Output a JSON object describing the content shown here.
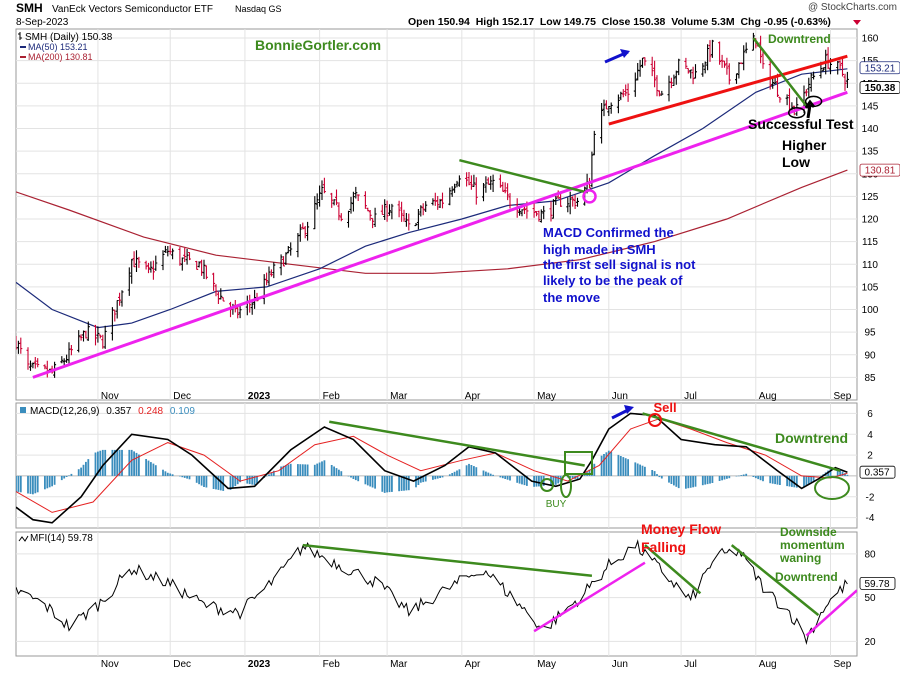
{
  "header": {
    "symbol": "SMH",
    "name": "VanEck Vectors Semiconductor ETF",
    "exchange": "Nasdaq GS",
    "date": "8-Sep-2023",
    "watermark": "@ StockCharts.com",
    "quote": "Open 150.94  High 152.17  Low 149.75  Close 150.38  Volume 5.3M  Chg -0.95 (-0.63%)"
  },
  "colors": {
    "up": "#000000",
    "down": "#cc0033",
    "ma50": "#1c2a7a",
    "ma200": "#aa2233",
    "macd_line": "#000000",
    "signal_line": "#e52222",
    "histogram": "#3a8dbd",
    "annot_green": "#3d8a1e",
    "annot_magenta": "#ee22ee",
    "annot_red": "#ee1111",
    "annot_blue": "#1111cc"
  },
  "chart_data": [
    {
      "type": "candlestick",
      "legend": [
        "SMH (Daily) 150.38",
        "MA(50) 153.21",
        "MA(200) 130.81"
      ],
      "x_tick_labels": [
        "Nov",
        "Dec",
        "2023",
        "Feb",
        "Mar",
        "Apr",
        "May",
        "Jun",
        "Jul",
        "Aug",
        "Sep"
      ],
      "ylim": [
        80,
        162
      ],
      "y_ticks": [
        85,
        90,
        95,
        100,
        105,
        110,
        115,
        120,
        125,
        130,
        135,
        140,
        145,
        150,
        155,
        160
      ],
      "last_values": {
        "ma50": 153.21,
        "close": 150.38,
        "ma200": 130.81
      },
      "close_series": [
        {
          "date": "2022-09-28",
          "value": 93
        },
        {
          "date": "2022-10-03",
          "value": 87
        },
        {
          "date": "2022-10-13",
          "value": 86
        },
        {
          "date": "2022-10-20",
          "value": 90
        },
        {
          "date": "2022-10-27",
          "value": 95
        },
        {
          "date": "2022-11-03",
          "value": 93
        },
        {
          "date": "2022-11-10",
          "value": 103
        },
        {
          "date": "2022-11-15",
          "value": 111
        },
        {
          "date": "2022-11-22",
          "value": 108
        },
        {
          "date": "2022-11-30",
          "value": 113
        },
        {
          "date": "2022-12-05",
          "value": 111
        },
        {
          "date": "2022-12-13",
          "value": 110
        },
        {
          "date": "2022-12-20",
          "value": 104
        },
        {
          "date": "2022-12-28",
          "value": 99
        },
        {
          "date": "2023-01-05",
          "value": 102
        },
        {
          "date": "2023-01-12",
          "value": 108
        },
        {
          "date": "2023-01-20",
          "value": 113
        },
        {
          "date": "2023-01-27",
          "value": 119
        },
        {
          "date": "2023-02-02",
          "value": 126
        },
        {
          "date": "2023-02-10",
          "value": 121
        },
        {
          "date": "2023-02-16",
          "value": 125
        },
        {
          "date": "2023-02-24",
          "value": 120
        },
        {
          "date": "2023-03-03",
          "value": 123
        },
        {
          "date": "2023-03-10",
          "value": 118
        },
        {
          "date": "2023-03-17",
          "value": 123
        },
        {
          "date": "2023-03-24",
          "value": 124
        },
        {
          "date": "2023-03-31",
          "value": 130
        },
        {
          "date": "2023-04-07",
          "value": 126
        },
        {
          "date": "2023-04-14",
          "value": 128
        },
        {
          "date": "2023-04-21",
          "value": 124
        },
        {
          "date": "2023-04-28",
          "value": 122
        },
        {
          "date": "2023-05-05",
          "value": 121
        },
        {
          "date": "2023-05-12",
          "value": 124
        },
        {
          "date": "2023-05-19",
          "value": 124
        },
        {
          "date": "2023-05-24",
          "value": 128
        },
        {
          "date": "2023-05-26",
          "value": 140
        },
        {
          "date": "2023-06-01",
          "value": 146
        },
        {
          "date": "2023-06-09",
          "value": 148
        },
        {
          "date": "2023-06-15",
          "value": 155
        },
        {
          "date": "2023-06-23",
          "value": 148
        },
        {
          "date": "2023-06-30",
          "value": 154
        },
        {
          "date": "2023-07-07",
          "value": 152
        },
        {
          "date": "2023-07-14",
          "value": 158
        },
        {
          "date": "2023-07-21",
          "value": 151
        },
        {
          "date": "2023-07-28",
          "value": 157
        },
        {
          "date": "2023-08-01",
          "value": 160
        },
        {
          "date": "2023-08-04",
          "value": 153
        },
        {
          "date": "2023-08-11",
          "value": 148
        },
        {
          "date": "2023-08-18",
          "value": 144
        },
        {
          "date": "2023-08-23",
          "value": 150
        },
        {
          "date": "2023-08-30",
          "value": 155
        },
        {
          "date": "2023-09-05",
          "value": 153
        },
        {
          "date": "2023-09-08",
          "value": 150.38
        }
      ],
      "ma50_series": [
        {
          "date": "2022-09-28",
          "value": 106
        },
        {
          "date": "2022-10-13",
          "value": 100
        },
        {
          "date": "2022-11-01",
          "value": 96
        },
        {
          "date": "2022-11-15",
          "value": 97
        },
        {
          "date": "2022-12-01",
          "value": 100
        },
        {
          "date": "2022-12-20",
          "value": 104
        },
        {
          "date": "2023-01-10",
          "value": 105
        },
        {
          "date": "2023-02-01",
          "value": 109
        },
        {
          "date": "2023-02-20",
          "value": 114
        },
        {
          "date": "2023-03-10",
          "value": 117
        },
        {
          "date": "2023-04-01",
          "value": 120
        },
        {
          "date": "2023-04-20",
          "value": 123
        },
        {
          "date": "2023-05-10",
          "value": 124
        },
        {
          "date": "2023-06-01",
          "value": 128
        },
        {
          "date": "2023-06-20",
          "value": 134
        },
        {
          "date": "2023-07-10",
          "value": 140
        },
        {
          "date": "2023-08-01",
          "value": 148
        },
        {
          "date": "2023-08-20",
          "value": 152
        },
        {
          "date": "2023-09-08",
          "value": 153.21
        }
      ],
      "ma200_series": [
        {
          "date": "2022-09-28",
          "value": 126
        },
        {
          "date": "2022-10-20",
          "value": 122
        },
        {
          "date": "2022-11-20",
          "value": 116
        },
        {
          "date": "2022-12-20",
          "value": 112
        },
        {
          "date": "2023-01-20",
          "value": 110
        },
        {
          "date": "2023-02-20",
          "value": 108
        },
        {
          "date": "2023-03-20",
          "value": 108
        },
        {
          "date": "2023-04-20",
          "value": 109
        },
        {
          "date": "2023-05-20",
          "value": 111
        },
        {
          "date": "2023-06-20",
          "value": 115
        },
        {
          "date": "2023-07-20",
          "value": 120
        },
        {
          "date": "2023-08-20",
          "value": 127
        },
        {
          "date": "2023-09-08",
          "value": 130.81
        }
      ],
      "trendlines": [
        {
          "color": "magenta",
          "from": {
            "date": "2022-10-05",
            "value": 85
          },
          "to": {
            "date": "2023-09-08",
            "value": 148
          }
        },
        {
          "color": "green",
          "from": {
            "date": "2023-03-31",
            "value": 133
          },
          "to": {
            "date": "2023-05-22",
            "value": 126
          }
        },
        {
          "color": "red",
          "from": {
            "date": "2023-06-01",
            "value": 141
          },
          "to": {
            "date": "2023-09-08",
            "value": 156
          }
        },
        {
          "color": "green",
          "from": {
            "date": "2023-07-31",
            "value": 160
          },
          "to": {
            "date": "2023-08-22",
            "value": 145
          }
        }
      ],
      "annotations": {
        "site": "BonnieGortler.com",
        "macd_note_1": "MACD Confirmed the",
        "macd_note_2": "high made in SMH",
        "macd_note_3": "the first sell signal is not",
        "macd_note_4": "likely to be the peak of",
        "macd_note_5": "the move",
        "downtrend": "Downtrend",
        "successful_test": "Successful Test",
        "higher": "Higher",
        "low": "Low"
      }
    },
    {
      "type": "line",
      "legend": {
        "label": "MACD(12,26,9)",
        "macd": "0.357",
        "signal": "0.248",
        "hist": "0.109"
      },
      "ylim": [
        -5,
        7
      ],
      "y_ticks": [
        -4,
        -2,
        2,
        4,
        6
      ],
      "last_value_label": "0.357",
      "macd_series": [
        {
          "date": "2022-09-28",
          "value": -3
        },
        {
          "date": "2022-10-05",
          "value": -4.2
        },
        {
          "date": "2022-10-13",
          "value": -4.5
        },
        {
          "date": "2022-10-25",
          "value": -2
        },
        {
          "date": "2022-11-03",
          "value": 1
        },
        {
          "date": "2022-11-15",
          "value": 4
        },
        {
          "date": "2022-11-30",
          "value": 3.5
        },
        {
          "date": "2022-12-10",
          "value": 2
        },
        {
          "date": "2022-12-25",
          "value": -1.2
        },
        {
          "date": "2023-01-05",
          "value": -1
        },
        {
          "date": "2023-01-20",
          "value": 2.5
        },
        {
          "date": "2023-02-03",
          "value": 4.7
        },
        {
          "date": "2023-02-15",
          "value": 3.5
        },
        {
          "date": "2023-02-28",
          "value": 0.5
        },
        {
          "date": "2023-03-12",
          "value": -0.5
        },
        {
          "date": "2023-03-25",
          "value": 1
        },
        {
          "date": "2023-04-04",
          "value": 2.8
        },
        {
          "date": "2023-04-15",
          "value": 2.2
        },
        {
          "date": "2023-04-30",
          "value": -0.5
        },
        {
          "date": "2023-05-10",
          "value": -1
        },
        {
          "date": "2023-05-20",
          "value": -0.3
        },
        {
          "date": "2023-05-25",
          "value": 1.5
        },
        {
          "date": "2023-06-01",
          "value": 4.5
        },
        {
          "date": "2023-06-10",
          "value": 6
        },
        {
          "date": "2023-06-20",
          "value": 5.8
        },
        {
          "date": "2023-07-01",
          "value": 3.5
        },
        {
          "date": "2023-07-15",
          "value": 3
        },
        {
          "date": "2023-07-28",
          "value": 2.8
        },
        {
          "date": "2023-08-10",
          "value": 0.5
        },
        {
          "date": "2023-08-20",
          "value": -1.2
        },
        {
          "date": "2023-08-27",
          "value": -0.3
        },
        {
          "date": "2023-09-03",
          "value": 0.8
        },
        {
          "date": "2023-09-08",
          "value": 0.357
        }
      ],
      "signal_series": [
        {
          "date": "2022-09-28",
          "value": -1.5
        },
        {
          "date": "2022-10-13",
          "value": -3.5
        },
        {
          "date": "2022-10-30",
          "value": -2.5
        },
        {
          "date": "2022-11-15",
          "value": 1.5
        },
        {
          "date": "2022-11-30",
          "value": 3.2
        },
        {
          "date": "2022-12-15",
          "value": 2
        },
        {
          "date": "2022-12-30",
          "value": -0.5
        },
        {
          "date": "2023-01-15",
          "value": 0.5
        },
        {
          "date": "2023-01-30",
          "value": 3
        },
        {
          "date": "2023-02-15",
          "value": 3.8
        },
        {
          "date": "2023-03-01",
          "value": 2
        },
        {
          "date": "2023-03-15",
          "value": 0.5
        },
        {
          "date": "2023-04-01",
          "value": 1.5
        },
        {
          "date": "2023-04-15",
          "value": 2.2
        },
        {
          "date": "2023-05-01",
          "value": 0.5
        },
        {
          "date": "2023-05-15",
          "value": -0.5
        },
        {
          "date": "2023-05-28",
          "value": 1
        },
        {
          "date": "2023-06-10",
          "value": 4.5
        },
        {
          "date": "2023-06-22",
          "value": 5.5
        },
        {
          "date": "2023-07-05",
          "value": 4.5
        },
        {
          "date": "2023-07-20",
          "value": 3.2
        },
        {
          "date": "2023-08-05",
          "value": 2
        },
        {
          "date": "2023-08-20",
          "value": 0
        },
        {
          "date": "2023-09-01",
          "value": -0.2
        },
        {
          "date": "2023-09-08",
          "value": 0.248
        }
      ],
      "trendlines": [
        {
          "from": {
            "date": "2023-02-05",
            "value": 5.2
          },
          "to": {
            "date": "2023-05-22",
            "value": 1
          }
        },
        {
          "from": {
            "date": "2023-06-15",
            "value": 6
          },
          "to": {
            "date": "2023-09-05",
            "value": 0.5
          }
        }
      ],
      "annotations": {
        "buy": "BUY",
        "sell": "Sell",
        "downtrend": "Downtrend"
      }
    },
    {
      "type": "line",
      "legend": "MFI(14) 59.78",
      "ylim": [
        10,
        95
      ],
      "y_ticks": [
        20,
        50,
        80
      ],
      "last_value_label": "59.78",
      "mfi_series": [
        {
          "date": "2022-09-28",
          "value": 55
        },
        {
          "date": "2022-10-10",
          "value": 45
        },
        {
          "date": "2022-10-20",
          "value": 30
        },
        {
          "date": "2022-11-01",
          "value": 45
        },
        {
          "date": "2022-11-15",
          "value": 70
        },
        {
          "date": "2022-11-30",
          "value": 60
        },
        {
          "date": "2022-12-15",
          "value": 45
        },
        {
          "date": "2022-12-30",
          "value": 40
        },
        {
          "date": "2023-01-15",
          "value": 65
        },
        {
          "date": "2023-01-25",
          "value": 85
        },
        {
          "date": "2023-02-10",
          "value": 72
        },
        {
          "date": "2023-02-25",
          "value": 60
        },
        {
          "date": "2023-03-10",
          "value": 40
        },
        {
          "date": "2023-03-25",
          "value": 55
        },
        {
          "date": "2023-04-10",
          "value": 70
        },
        {
          "date": "2023-04-25",
          "value": 45
        },
        {
          "date": "2023-05-05",
          "value": 28
        },
        {
          "date": "2023-05-20",
          "value": 50
        },
        {
          "date": "2023-06-01",
          "value": 72
        },
        {
          "date": "2023-06-12",
          "value": 86
        },
        {
          "date": "2023-06-22",
          "value": 70
        },
        {
          "date": "2023-07-05",
          "value": 48
        },
        {
          "date": "2023-07-15",
          "value": 78
        },
        {
          "date": "2023-07-25",
          "value": 82
        },
        {
          "date": "2023-08-05",
          "value": 55
        },
        {
          "date": "2023-08-15",
          "value": 40
        },
        {
          "date": "2023-08-22",
          "value": 22
        },
        {
          "date": "2023-08-30",
          "value": 45
        },
        {
          "date": "2023-09-08",
          "value": 59.78
        }
      ],
      "trendlines": [
        {
          "color": "green",
          "from": {
            "date": "2023-01-25",
            "value": 86
          },
          "to": {
            "date": "2023-05-25",
            "value": 65
          }
        },
        {
          "color": "magenta",
          "from": {
            "date": "2023-05-01",
            "value": 27
          },
          "to": {
            "date": "2023-06-16",
            "value": 74
          }
        },
        {
          "color": "green",
          "from": {
            "date": "2023-06-16",
            "value": 86
          },
          "to": {
            "date": "2023-07-09",
            "value": 53
          }
        },
        {
          "color": "green",
          "from": {
            "date": "2023-07-22",
            "value": 86
          },
          "to": {
            "date": "2023-08-27",
            "value": 38
          }
        },
        {
          "color": "magenta",
          "from": {
            "date": "2023-08-22",
            "value": 24
          },
          "to": {
            "date": "2023-09-12",
            "value": 55
          }
        }
      ],
      "annotations": {
        "money_flow": "Money Flow",
        "falling": "Falling",
        "downside_1": "Downside",
        "downside_2": "momentum",
        "downside_3": "waning",
        "downtrend": "Downtrend"
      }
    }
  ]
}
